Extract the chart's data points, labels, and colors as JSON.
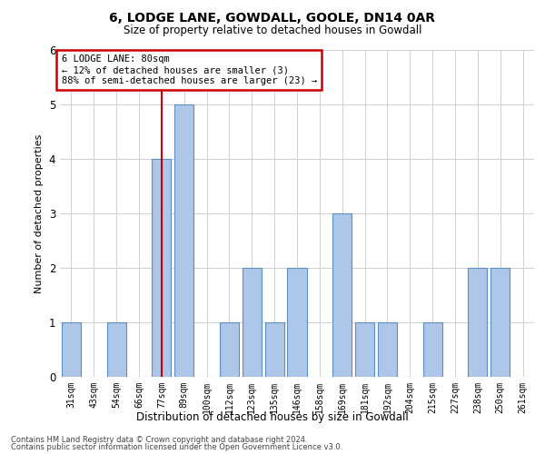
{
  "title": "6, LODGE LANE, GOWDALL, GOOLE, DN14 0AR",
  "subtitle": "Size of property relative to detached houses in Gowdall",
  "xlabel": "Distribution of detached houses by size in Gowdall",
  "ylabel": "Number of detached properties",
  "categories": [
    "31sqm",
    "43sqm",
    "54sqm",
    "66sqm",
    "77sqm",
    "89sqm",
    "100sqm",
    "112sqm",
    "123sqm",
    "135sqm",
    "146sqm",
    "158sqm",
    "169sqm",
    "181sqm",
    "192sqm",
    "204sqm",
    "215sqm",
    "227sqm",
    "238sqm",
    "250sqm",
    "261sqm"
  ],
  "values": [
    1,
    0,
    1,
    0,
    4,
    5,
    0,
    1,
    2,
    1,
    2,
    0,
    3,
    1,
    1,
    0,
    1,
    0,
    2,
    2,
    0
  ],
  "bar_color": "#aec6e8",
  "bar_edge_color": "#5b8ec4",
  "highlight_bar_index": 4,
  "highlight_line_color": "#cc0000",
  "annotation_text": "6 LODGE LANE: 80sqm\n← 12% of detached houses are smaller (3)\n88% of semi-detached houses are larger (23) →",
  "annotation_box_color": "#ffffff",
  "annotation_box_edge": "#cc0000",
  "ylim": [
    0,
    6
  ],
  "yticks": [
    0,
    1,
    2,
    3,
    4,
    5,
    6
  ],
  "footer1": "Contains HM Land Registry data © Crown copyright and database right 2024.",
  "footer2": "Contains public sector information licensed under the Open Government Licence v3.0.",
  "background_color": "#ffffff",
  "grid_color": "#d0d0d0"
}
